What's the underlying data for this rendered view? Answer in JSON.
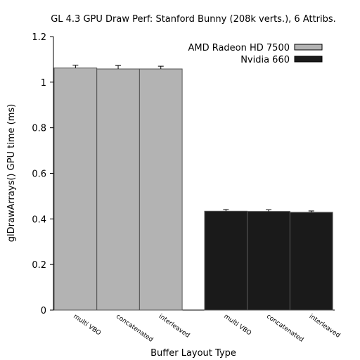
{
  "chart_data": {
    "type": "bar",
    "title": "GL 4.3 GPU Draw Perf: Stanford Bunny (208k verts.), 6 Attribs.",
    "xlabel": "Buffer Layout Type",
    "ylabel": "glDrawArrays() GPU time (ms)",
    "ylim": [
      0,
      1.2
    ],
    "yticks": [
      "0",
      "0.2",
      "0.4",
      "0.6",
      "0.8",
      "1",
      "1.2"
    ],
    "legend_position": "top-right",
    "groups": [
      {
        "name": "AMD Radeon HD 7500",
        "color": "#b3b3b3",
        "categories": [
          "multi VBO",
          "concatenated",
          "interleaved"
        ],
        "values": [
          1.062,
          1.058,
          1.058
        ],
        "errors": [
          0.012,
          0.015,
          0.012
        ]
      },
      {
        "name": "Nvidia 660",
        "color": "#1a1a1a",
        "categories": [
          "multi VBO",
          "concatenated",
          "interleaved"
        ],
        "values": [
          0.434,
          0.433,
          0.429
        ],
        "errors": [
          0.007,
          0.007,
          0.006
        ]
      }
    ]
  }
}
